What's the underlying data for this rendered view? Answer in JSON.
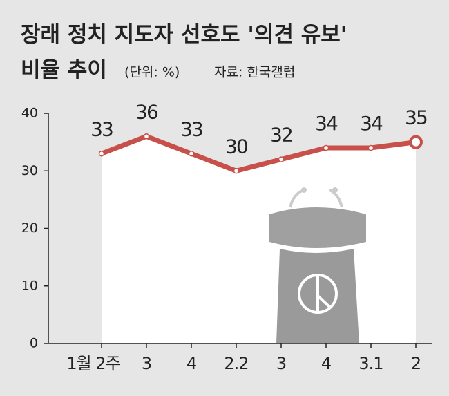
{
  "chart_data": {
    "type": "line",
    "title": "장래 정치 지도자 선호도 '의견 유보'",
    "subtitle": "비율 추이",
    "unit_note": "(단위: %)",
    "source": "자료: 한국갤럽",
    "categories": [
      "1월 2주",
      "3",
      "4",
      "2.2",
      "3",
      "4",
      "3.1",
      "2"
    ],
    "values": [
      33,
      36,
      33,
      30,
      32,
      34,
      34,
      35
    ],
    "color": "#c8504a",
    "ylim": [
      0,
      40
    ],
    "yticks": [
      0,
      10,
      20,
      30,
      40
    ]
  }
}
